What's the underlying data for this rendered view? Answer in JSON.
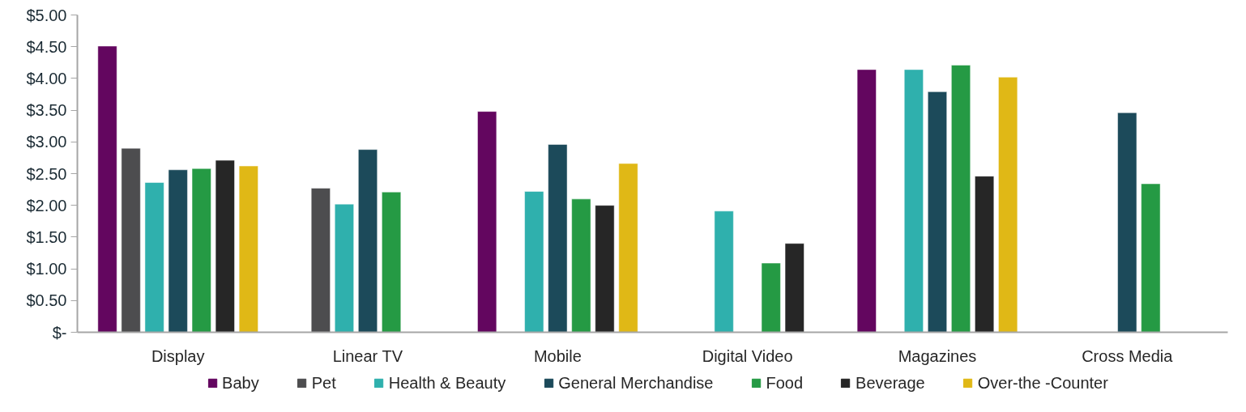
{
  "chart_data": {
    "type": "bar",
    "categories": [
      "Display",
      "Linear TV",
      "Mobile",
      "Digital Video",
      "Magazines",
      "Cross Media"
    ],
    "series": [
      {
        "name": "Baby",
        "color": "#63065f",
        "values": [
          4.51,
          null,
          3.48,
          null,
          4.14,
          null
        ]
      },
      {
        "name": "Pet",
        "color": "#4d4d4f",
        "values": [
          2.9,
          2.27,
          null,
          null,
          null,
          null
        ]
      },
      {
        "name": "Health & Beauty",
        "color": "#2fb0ad",
        "values": [
          2.36,
          2.02,
          2.22,
          1.91,
          4.14,
          null
        ]
      },
      {
        "name": "General Merchandise",
        "color": "#1c4a5a",
        "values": [
          2.56,
          2.88,
          2.96,
          null,
          3.79,
          3.46
        ]
      },
      {
        "name": "Food",
        "color": "#259a44",
        "values": [
          2.58,
          2.21,
          2.1,
          1.09,
          4.21,
          2.34
        ]
      },
      {
        "name": "Beverage",
        "color": "#262626",
        "values": [
          2.71,
          null,
          2.0,
          1.4,
          2.46,
          null
        ]
      },
      {
        "name": "Over-the -Counter",
        "color": "#e0b816",
        "values": [
          2.62,
          null,
          2.66,
          null,
          4.02,
          null
        ]
      }
    ],
    "ylim": [
      0,
      5
    ],
    "yticks": [
      {
        "value": 0,
        "label": "$-"
      },
      {
        "value": 0.5,
        "label": "$0.50"
      },
      {
        "value": 1,
        "label": "$1.00"
      },
      {
        "value": 1.5,
        "label": "$1.50"
      },
      {
        "value": 2,
        "label": "$2.00"
      },
      {
        "value": 2.5,
        "label": "$2.50"
      },
      {
        "value": 3,
        "label": "$3.00"
      },
      {
        "value": 3.5,
        "label": "$3.50"
      },
      {
        "value": 4,
        "label": "$4.00"
      },
      {
        "value": 4.5,
        "label": "$4.50"
      },
      {
        "value": 5,
        "label": "$5.00"
      }
    ],
    "grid": false,
    "legend": "bottom"
  }
}
